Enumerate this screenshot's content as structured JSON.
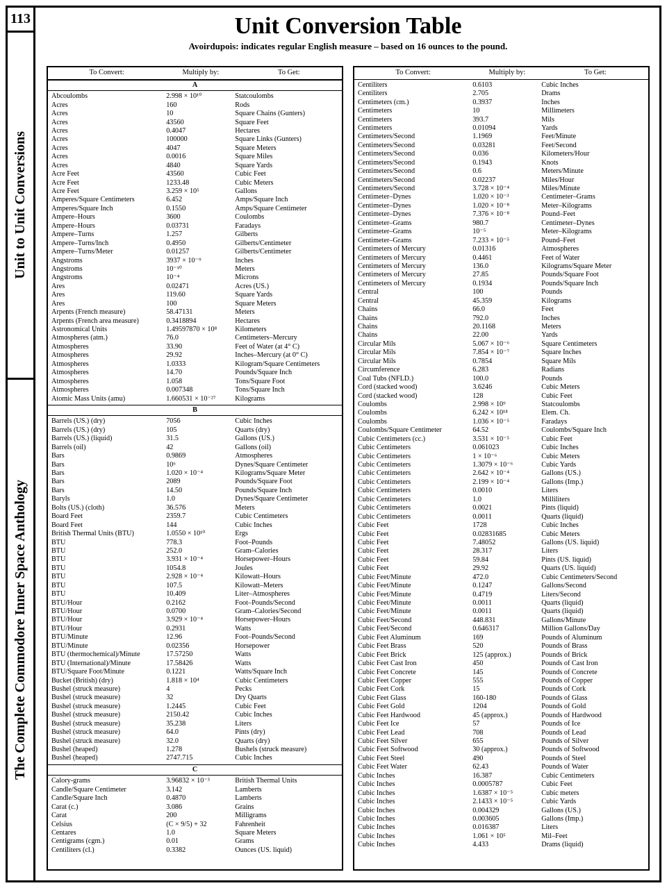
{
  "page_number": "113",
  "side_tab_upper": "Unit to Unit Conversions",
  "side_tab_lower": "The Complete Commodore Inner Space Anthology",
  "title": "Unit Conversion Table",
  "subtitle": "Avoirdupois: indicates regular English measure – based on 16 ounces to the pound.",
  "headers": {
    "c1": "To Convert:",
    "c2": "Multiply by:",
    "c3": "To Get:"
  },
  "colors": {
    "ink": "#000000",
    "paper": "#ffffff"
  },
  "typography": {
    "title_pt": 34,
    "subtitle_pt": 13,
    "body_pt": 10.2,
    "family": "Times New Roman"
  },
  "left": {
    "sections": [
      {
        "letter": "A",
        "rows": [
          [
            "Abcoulombs",
            "2.998 × 10¹⁰",
            "Statcoulombs"
          ],
          [
            "Acres",
            "160",
            "Rods"
          ],
          [
            "Acres",
            "10",
            "Square Chains (Gunters)"
          ],
          [
            "Acres",
            "43560",
            "Square Feet"
          ],
          [
            "Acres",
            "0.4047",
            "Hectares"
          ],
          [
            "Acres",
            "100000",
            "Square Links (Gunters)"
          ],
          [
            "Acres",
            "4047",
            "Square Meters"
          ],
          [
            "Acres",
            "0.0016",
            "Square Miles"
          ],
          [
            "Acres",
            "4840",
            "Square Yards"
          ],
          [
            "Acre Feet",
            "43560",
            "Cubic Feet"
          ],
          [
            "Acre Feet",
            "1233.48",
            "Cubic Meters"
          ],
          [
            "Acre Feet",
            "3.259 × 10⁵",
            "Gallons"
          ],
          [
            "Amperes/Square Centimeters",
            "6.452",
            "Amps/Square Inch"
          ],
          [
            "Amperes/Square Inch",
            "0.1550",
            "Amps/Square Centimeter"
          ],
          [
            "Ampere–Hours",
            "3600",
            "Coulombs"
          ],
          [
            "Ampere–Hours",
            "0.03731",
            "Faradays"
          ],
          [
            "Ampere–Turns",
            "1.257",
            "Gilberts"
          ],
          [
            "Ampere–Turns/Inch",
            "0.4950",
            "Gilberts/Centimeter"
          ],
          [
            "Ampere–Turns/Meter",
            "0.01257",
            "Gilberts/Centimeter"
          ],
          [
            "Angstroms",
            "3937 × 10⁻⁹",
            "Inches"
          ],
          [
            "Angstroms",
            "10⁻¹⁰",
            "Meters"
          ],
          [
            "Angstroms",
            "10⁻⁴",
            "Microns"
          ],
          [
            "Ares",
            "0.02471",
            "Acres (US.)"
          ],
          [
            "Ares",
            "119.60",
            "Square Yards"
          ],
          [
            "Ares",
            "100",
            "Square Meters"
          ],
          [
            "Arpents (French measure)",
            "58.47131",
            "Meters"
          ],
          [
            "Arpents (French area measure)",
            "0.3418894",
            "Hectares"
          ],
          [
            "Astronomical Units",
            "1.49597870 × 10⁸",
            "Kilometers"
          ],
          [
            "Atmospheres (atm.)",
            "76.0",
            "Centimeters–Mercury"
          ],
          [
            "Atmospheres",
            "33.90",
            "Feet of Water (at 4° C)"
          ],
          [
            "Atmospheres",
            "29.92",
            "Inches–Mercury (at 0° C)"
          ],
          [
            "Atmospheres",
            "1.0333",
            "Kilogram/Square Centimeters"
          ],
          [
            "Atmospheres",
            "14.70",
            "Pounds/Square Inch"
          ],
          [
            "Atmospheres",
            "1.058",
            "Tons/Square Foot"
          ],
          [
            "Atmospheres",
            "0.007348",
            "Tons/Square Inch"
          ],
          [
            "Atomic Mass Units (amu)",
            "1.660531 × 10⁻²⁷",
            "Kilograms"
          ]
        ]
      },
      {
        "letter": "B",
        "rows": [
          [
            "Barrels (US.) (dry)",
            "7056",
            "Cubic Inches"
          ],
          [
            "Barrels (US.) (dry)",
            "105",
            "Quarts (dry)"
          ],
          [
            "Barrels (US.) (liquid)",
            "31.5",
            "Gallons (US.)"
          ],
          [
            "Barrels (oil)",
            "42",
            "Gallons (oil)"
          ],
          [
            "Bars",
            "0.9869",
            "Atmospheres"
          ],
          [
            "Bars",
            "10⁶",
            "Dynes/Square Centimeter"
          ],
          [
            "Bars",
            "1.020 × 10⁻⁴",
            "Kilograms/Square Meter"
          ],
          [
            "Bars",
            "2089",
            "Pounds/Square Foot"
          ],
          [
            "Bars",
            "14.50",
            "Pounds/Square Inch"
          ],
          [
            "Baryls",
            "1.0",
            "Dynes/Square Centimeter"
          ],
          [
            "Bolts (US.) (cloth)",
            "36.576",
            "Meters"
          ],
          [
            "Board Feet",
            "2359.7",
            "Cubic Centimeters"
          ],
          [
            "Board Feet",
            "144",
            "Cubic Inches"
          ],
          [
            "British Thermal Units (BTU)",
            "1.0550 × 10¹⁰",
            "Ergs"
          ],
          [
            "BTU",
            "778.3",
            "Foot–Pounds"
          ],
          [
            "BTU",
            "252.0",
            "Gram–Calories"
          ],
          [
            "BTU",
            "3.931 × 10⁻⁴",
            "Horsepower–Hours"
          ],
          [
            "BTU",
            "1054.8",
            "Joules"
          ],
          [
            "BTU",
            "2.928 × 10⁻⁴",
            "Kilowatt–Hours"
          ],
          [
            "BTU",
            "107.5",
            "Kilowatt–Meters"
          ],
          [
            "BTU",
            "10.409",
            "Liter–Atmospheres"
          ],
          [
            "BTU/Hour",
            "0.2162",
            "Foot–Pounds/Second"
          ],
          [
            "BTU/Hour",
            "0.0700",
            "Gram–Calories/Second"
          ],
          [
            "BTU/Hour",
            "3.929 × 10⁻⁴",
            "Horsepower–Hours"
          ],
          [
            "BTU/Hour",
            "0.2931",
            "Watts"
          ],
          [
            "BTU/Minute",
            "12.96",
            "Foot–Pounds/Second"
          ],
          [
            "BTU/Minute",
            "0.02356",
            "Horsepower"
          ],
          [
            "BTU (thermochemical)/Minute",
            "17.57250",
            "Watts"
          ],
          [
            "BTU (International)/Minute",
            "17.58426",
            "Watts"
          ],
          [
            "BTU/Square Foot/Minute",
            "0.1221",
            "Watts/Square Inch"
          ],
          [
            "Bucket (British) (dry)",
            "1.818 × 10⁴",
            "Cubic Centimeters"
          ],
          [
            "Bushel (struck measure)",
            "4",
            "Pecks"
          ],
          [
            "Bushel (struck measure)",
            "32",
            "Dry Quarts"
          ],
          [
            "Bushel (struck measure)",
            "1.2445",
            "Cubic Feet"
          ],
          [
            "Bushel (struck measure)",
            "2150.42",
            "Cubic Inches"
          ],
          [
            "Bushel (struck measure)",
            "35.238",
            "Liters"
          ],
          [
            "Bushel (struck measure)",
            "64.0",
            "Pints (dry)"
          ],
          [
            "Bushel (struck measure)",
            "32.0",
            "Quarts (dry)"
          ],
          [
            "Bushel (heaped)",
            "1.278",
            "Bushels (struck measure)"
          ],
          [
            "Bushel (heaped)",
            "2747.715",
            "Cubic Inches"
          ]
        ]
      },
      {
        "letter": "C",
        "rows": [
          [
            "Calory-grams",
            "3.96832 × 10⁻³",
            "British Thermal Units"
          ],
          [
            "Candle/Square Centimeter",
            "3.142",
            "Lamberts"
          ],
          [
            "Candle/Square Inch",
            "0.4870",
            "Lamberts"
          ],
          [
            "Carat (c.)",
            "3.086",
            "Grains"
          ],
          [
            "Carat",
            "200",
            "Milligrams"
          ],
          [
            "Celsius",
            "(C × 9/5) + 32",
            "Fahrenheit"
          ],
          [
            "Centares",
            "1.0",
            "Square Meters"
          ],
          [
            "Centigrams (cgm.)",
            "0.01",
            "Grams"
          ],
          [
            "Centiliters (cl.)",
            "0.3382",
            "Ounces (US. liquid)"
          ]
        ]
      }
    ]
  },
  "right": {
    "rows": [
      [
        "Centiliters",
        "0.6103",
        "Cubic Inches"
      ],
      [
        "Centiliters",
        "2.705",
        "Drams"
      ],
      [
        "Centimeters (cm.)",
        "0.3937",
        "Inches"
      ],
      [
        "Centimeters",
        "10",
        "Millimeters"
      ],
      [
        "Centimeters",
        "393.7",
        "Mils"
      ],
      [
        "Centimeters",
        "0.01094",
        "Yards"
      ],
      [
        "Centimeters/Second",
        "1.1969",
        "Feet/Minute"
      ],
      [
        "Centimeters/Second",
        "0.03281",
        "Feet/Second"
      ],
      [
        "Centimeters/Second",
        "0.036",
        "Kilometers/Hour"
      ],
      [
        "Centimeters/Second",
        "0.1943",
        "Knots"
      ],
      [
        "Centimeters/Second",
        "0.6",
        "Meters/Minute"
      ],
      [
        "Centimeters/Second",
        "0.02237",
        "Miles/Hour"
      ],
      [
        "Centimeters/Second",
        "3.728 × 10⁻⁴",
        "Miles/Minute"
      ],
      [
        "Centimeter–Dynes",
        "1.020 × 10⁻³",
        "Centimeter–Grams"
      ],
      [
        "Centimeter–Dynes",
        "1.020 × 10⁻⁸",
        "Meter–Kilograms"
      ],
      [
        "Centimeter–Dynes",
        "7.376 × 10⁻⁸",
        "Pound–Feet"
      ],
      [
        "Centimeter–Grams",
        "980.7",
        "Centimeter–Dynes"
      ],
      [
        "Centimeter–Grams",
        "10⁻⁵",
        "Meter–Kilograms"
      ],
      [
        "Centimeter–Grams",
        "7.233 × 10⁻⁵",
        "Pound–Feet"
      ],
      [
        "Centimeters of Mercury",
        "0.01316",
        "Atmospheres"
      ],
      [
        "Centimeters of Mercury",
        "0.4461",
        "Feet of Water"
      ],
      [
        "Centimeters of Mercury",
        "136.0",
        "Kilograms/Square Meter"
      ],
      [
        "Centimeters of Mercury",
        "27.85",
        "Pounds/Square Foot"
      ],
      [
        "Centimeters of Mercury",
        "0.1934",
        "Pounds/Square Inch"
      ],
      [
        "Central",
        "100",
        "Pounds"
      ],
      [
        "Central",
        "45.359",
        "Kilograms"
      ],
      [
        "Chains",
        "66.0",
        "Feet"
      ],
      [
        "Chains",
        "792.0",
        "Inches"
      ],
      [
        "Chains",
        "20.1168",
        "Meters"
      ],
      [
        "Chains",
        "22.00",
        "Yards"
      ],
      [
        "Circular Mils",
        "5.067 × 10⁻⁶",
        "Square Centimeters"
      ],
      [
        "Circular Mils",
        "7.854 × 10⁻⁷",
        "Square Inches"
      ],
      [
        "Circular Mils",
        "0.7854",
        "Square Mils"
      ],
      [
        "Circumference",
        "6.283",
        "Radians"
      ],
      [
        "Coal Tubs (NFLD.)",
        "100.0",
        "Pounds"
      ],
      [
        "Cord (stacked wood)",
        "3.6246",
        "Cubic Meters"
      ],
      [
        "Cord (stacked wood)",
        "128",
        "Cubic Feet"
      ],
      [
        "Coulombs",
        "2.998 × 10⁹",
        "Statcoulombs"
      ],
      [
        "Coulombs",
        "6.242 × 10¹⁸",
        "Elem. Ch."
      ],
      [
        "Coulombs",
        "1.036 × 10⁻⁵",
        "Faradays"
      ],
      [
        "Coulombs/Square Centimeter",
        "64.52",
        "Coulombs/Square Inch"
      ],
      [
        "Cubic Centimeters (cc.)",
        "3.531 × 10⁻⁵",
        "Cubic Feet"
      ],
      [
        "Cubic Centimeters",
        "0.061023",
        "Cubic Inches"
      ],
      [
        "Cubic Centimeters",
        "1 × 10⁻⁶",
        "Cubic Meters"
      ],
      [
        "Cubic Centimeters",
        "1.3079 × 10⁻⁶",
        "Cubic Yards"
      ],
      [
        "Cubic Centimeters",
        "2.642 × 10⁻⁴",
        "Gallons (US.)"
      ],
      [
        "Cubic Centimeters",
        "2.199 × 10⁻⁴",
        "Gallons (Imp.)"
      ],
      [
        "Cubic Centimeters",
        "0.0010",
        "Liters"
      ],
      [
        "Cubic Centimeters",
        "1.0",
        "Milliliters"
      ],
      [
        "Cubic Centimeters",
        "0.0021",
        "Pints (liquid)"
      ],
      [
        "Cubic Centimeters",
        "0.0011",
        "Quarts (liquid)"
      ],
      [
        "Cubic Feet",
        "1728",
        "Cubic Inches"
      ],
      [
        "Cubic Feet",
        "0.02831685",
        "Cubic Meters"
      ],
      [
        "Cubic Feet",
        "7.48052",
        "Gallons (US. liquid)"
      ],
      [
        "Cubic Feet",
        "28.317",
        "Liters"
      ],
      [
        "Cubic Feet",
        "59.84",
        "Pints (US. liquid)"
      ],
      [
        "Cubic Feet",
        "29.92",
        "Quarts (US. liquid)"
      ],
      [
        "Cubic Feet/Minute",
        "472.0",
        "Cubic Centimeters/Second"
      ],
      [
        "Cubic Feet/Minute",
        "0.1247",
        "Gallons/Second"
      ],
      [
        "Cubic Feet/Minute",
        "0.4719",
        "Liters/Second"
      ],
      [
        "Cubic Feet/Minute",
        "0.0011",
        "Quarts (liquid)"
      ],
      [
        "Cubic Feet/Minute",
        "0.0011",
        "Quarts (liquid)"
      ],
      [
        "Cubic Feet/Second",
        "448.831",
        "Gallons/Minute"
      ],
      [
        "Cubic Feet/Second",
        "0.646317",
        "Million Gallons/Day"
      ],
      [
        "Cubic Feet Aluminum",
        "169",
        "Pounds of Aluminum"
      ],
      [
        "Cubic Feet Brass",
        "520",
        "Pounds of Brass"
      ],
      [
        "Cubic Feet Brick",
        "125 (approx.)",
        "Pounds of Brick"
      ],
      [
        "Cubic Feet Cast Iron",
        "450",
        "Pounds of Cast Iron"
      ],
      [
        "Cubic Feet Concrete",
        "145",
        "Pounds of Concrete"
      ],
      [
        "Cubic Feet Copper",
        "555",
        "Pounds of Copper"
      ],
      [
        "Cubic Feet Cork",
        "15",
        "Pounds of Cork"
      ],
      [
        "Cubic Feet Glass",
        "160-180",
        "Pounds of Glass"
      ],
      [
        "Cubic Feet Gold",
        "1204",
        "Pounds of Gold"
      ],
      [
        "Cubic Feet Hardwood",
        "45 (approx.)",
        "Pounds of Hardwood"
      ],
      [
        "Cubic Feet Ice",
        "57",
        "Pounds of Ice"
      ],
      [
        "Cubic Feet Lead",
        "708",
        "Pounds of Lead"
      ],
      [
        "Cubic Feet Silver",
        "655",
        "Pounds of Silver"
      ],
      [
        "Cubic Feet Softwood",
        "30 (approx.)",
        "Pounds of Softwood"
      ],
      [
        "Cubic Feet Steel",
        "490",
        "Pounds of Steel"
      ],
      [
        "Cubic Feet Water",
        "62.43",
        "Pounds of Water"
      ],
      [
        "Cubic Inches",
        "16.387",
        "Cubic Centimeters"
      ],
      [
        "Cubic Inches",
        "0.0005787",
        "Cubic Feet"
      ],
      [
        "Cubic Inches",
        "1.6387 × 10⁻⁵",
        "Cubic meters"
      ],
      [
        "Cubic Inches",
        "2.1433 × 10⁻⁵",
        "Cubic Yards"
      ],
      [
        "Cubic Inches",
        "0.004329",
        "Gallons (US.)"
      ],
      [
        "Cubic Inches",
        "0.003605",
        "Gallons (Imp.)"
      ],
      [
        "Cubic Inches",
        "0.016387",
        "Liters"
      ],
      [
        "Cubic Inches",
        "1.061 × 10⁵",
        "Mil–Feet"
      ],
      [
        "Cubic Inches",
        "4.433",
        "Drams (liquid)"
      ]
    ]
  }
}
